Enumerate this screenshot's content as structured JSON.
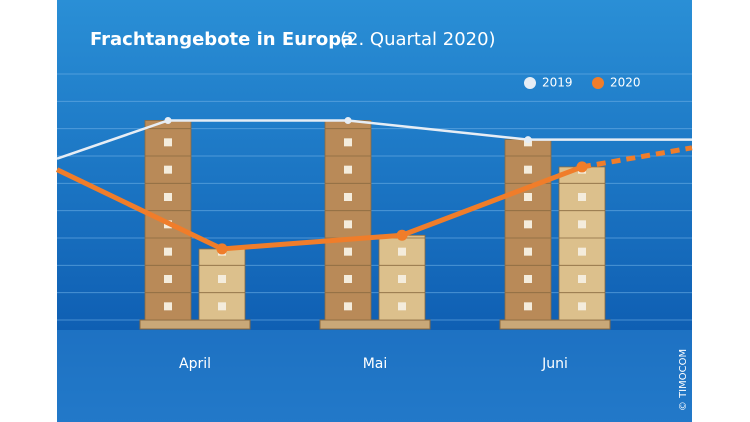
{
  "chart_data": {
    "type": "bar_line",
    "title": "Frachtangebote in Europa",
    "subtitle": "(2. Quartal 2020)",
    "credit": "© TIMOCOM",
    "categories": [
      null,
      "April",
      "Mai",
      "Juni",
      null
    ],
    "series": [
      {
        "name": "2019",
        "color": "#e6edf5",
        "bar_color": "#b98a58",
        "values": [
          5.9,
          7.3,
          7.3,
          6.6,
          6.6
        ]
      },
      {
        "name": "2020",
        "color": "#f07d2a",
        "bar_color": "#dcc08c",
        "values": [
          5.5,
          2.6,
          3.1,
          5.6,
          6.3
        ]
      }
    ],
    "ylim": [
      0,
      9
    ],
    "grid": true
  }
}
